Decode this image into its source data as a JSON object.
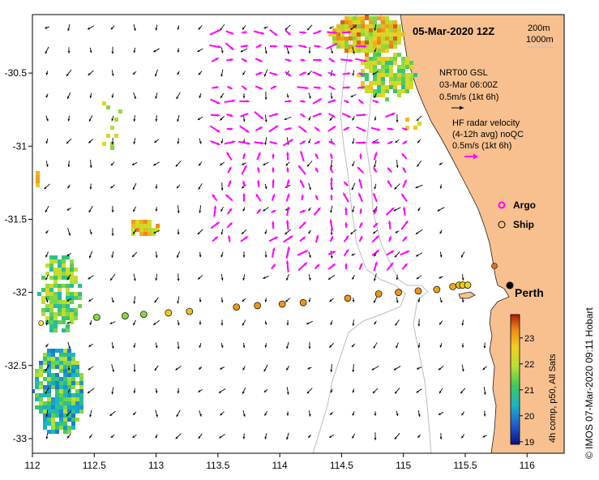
{
  "title": "05-Mar-2020 12Z",
  "isobaths": [
    "200m",
    "1000m"
  ],
  "legend": {
    "gsl_line1": "NRT00 GSL",
    "gsl_line2": "03-Mar 06:00Z",
    "gsl_line3": "0.5m/s (1kt 6h)",
    "hf_line1": "HF radar velocity",
    "hf_line2": "(4-12h avg) noQC",
    "hf_line3": "0.5m/s (1kt 6h)",
    "argo": "Argo",
    "ship": "Ship"
  },
  "place": "Perth",
  "colorbar": {
    "label": "4h comp, p50, All Sats",
    "ticks": [
      "23",
      "22",
      "21",
      "20",
      "19"
    ],
    "min": 18.9,
    "max": 23.9
  },
  "credit": "© IMOS 07-Mar-2020 09:11 Hobart",
  "axes": {
    "x_ticks": [
      "112",
      "112.5",
      "113",
      "113.5",
      "114",
      "114.5",
      "115",
      "115.5",
      "116"
    ],
    "y_ticks": [
      "-30.5",
      "-31",
      "-31.5",
      "-32",
      "-32.5",
      "-33"
    ],
    "xlim": [
      112,
      116.3
    ],
    "ylim": [
      -33.1,
      -30.1
    ]
  },
  "ship_track": {
    "lon": [
      112.52,
      112.75,
      112.9,
      113.1,
      113.27,
      113.65,
      113.82,
      114.02,
      114.19,
      114.55,
      114.8,
      114.96,
      115.12,
      115.27,
      115.4,
      115.45,
      115.48,
      115.52
    ],
    "lat": [
      -32.17,
      -32.16,
      -32.15,
      -32.14,
      -32.13,
      -32.1,
      -32.09,
      -32.08,
      -32.07,
      -32.04,
      -32.01,
      -32.0,
      -31.99,
      -31.98,
      -31.96,
      -31.95,
      -31.95,
      -31.95
    ],
    "sst": [
      21.6,
      21.6,
      21.6,
      22.7,
      22.8,
      23.2,
      23.2,
      23.2,
      23.2,
      23.2,
      23.2,
      23.2,
      23.2,
      23.1,
      23.0,
      22.8,
      22.7,
      22.6
    ]
  },
  "argo_float": {
    "lon": 112.07,
    "lat": -32.21
  },
  "colors": {
    "land": "#f7c08e",
    "hf_arrow": "#ff00ff",
    "gsl_arrow": "#000000",
    "isobath": "#bdbdbd"
  }
}
